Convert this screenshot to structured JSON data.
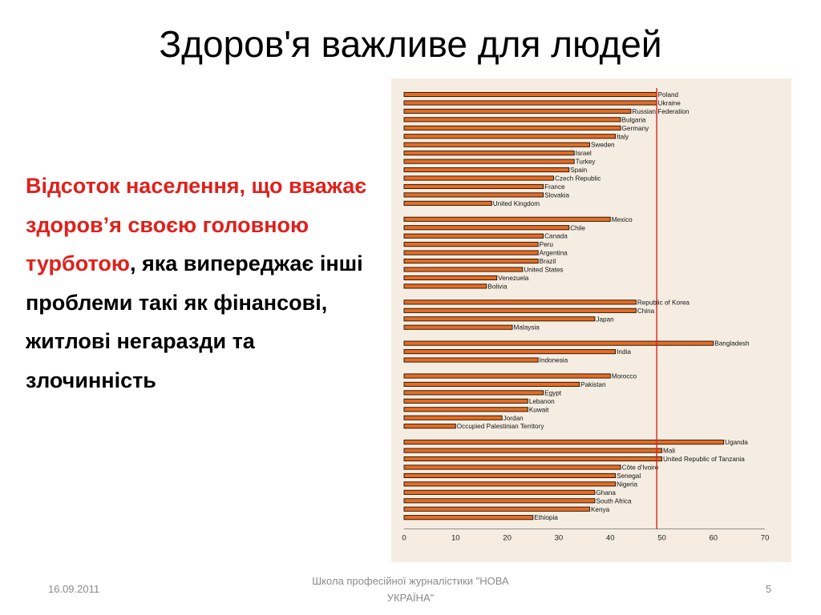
{
  "slide": {
    "title": "Здоров'я важливе для людей",
    "body": {
      "red_part": "Відсоток населення, що вважає здоров’я своєю головною турботою",
      "black_part": ", яка випереджає інші проблеми такі як фінансові, житлові негаразди та злочинність"
    },
    "footer": {
      "date": "16.09.2011",
      "school": "Школа професійної журналістики \"НОВА УКРАЇНА\"",
      "page": "5"
    }
  },
  "colors": {
    "bar_fill": "#e96b1f",
    "bar_stroke": "#111111",
    "reference_line": "#e0201b",
    "chart_background": "#f5ede1",
    "highlight_text": "#e0201b"
  },
  "chart_data": {
    "type": "bar",
    "orientation": "horizontal",
    "title": "",
    "xlabel": "",
    "ylabel": "",
    "xlim": [
      0,
      70
    ],
    "xticks": [
      0,
      10,
      20,
      30,
      40,
      50,
      60,
      70
    ],
    "reference_line": 49,
    "grid": false,
    "groups": [
      {
        "bars": [
          {
            "label": "Poland",
            "value": 49
          },
          {
            "label": "Ukraine",
            "value": 49
          },
          {
            "label": "Russian Federation",
            "value": 44
          },
          {
            "label": "Bulgaria",
            "value": 42
          },
          {
            "label": "Germany",
            "value": 42
          },
          {
            "label": "Italy",
            "value": 41
          },
          {
            "label": "Sweden",
            "value": 36
          },
          {
            "label": "Israel",
            "value": 33
          },
          {
            "label": "Turkey",
            "value": 33
          },
          {
            "label": "Spain",
            "value": 32
          },
          {
            "label": "Czech Republic",
            "value": 29
          },
          {
            "label": "France",
            "value": 27
          },
          {
            "label": "Slovakia",
            "value": 27
          },
          {
            "label": "United Kingdom",
            "value": 17
          }
        ]
      },
      {
        "bars": [
          {
            "label": "Mexico",
            "value": 40
          },
          {
            "label": "Chile",
            "value": 32
          },
          {
            "label": "Canada",
            "value": 27
          },
          {
            "label": "Peru",
            "value": 26
          },
          {
            "label": "Argentina",
            "value": 26
          },
          {
            "label": "Brazil",
            "value": 26
          },
          {
            "label": "United States",
            "value": 23
          },
          {
            "label": "Venezuela",
            "value": 18
          },
          {
            "label": "Bolivia",
            "value": 16
          }
        ]
      },
      {
        "bars": [
          {
            "label": "Republic of Korea",
            "value": 45
          },
          {
            "label": "China",
            "value": 45
          },
          {
            "label": "Japan",
            "value": 37
          },
          {
            "label": "Malaysia",
            "value": 21
          }
        ]
      },
      {
        "bars": [
          {
            "label": "Bangladesh",
            "value": 60
          },
          {
            "label": "India",
            "value": 41
          },
          {
            "label": "Indonesia",
            "value": 26
          }
        ]
      },
      {
        "bars": [
          {
            "label": "Morocco",
            "value": 40
          },
          {
            "label": "Pakistan",
            "value": 34
          },
          {
            "label": "Egypt",
            "value": 27
          },
          {
            "label": "Lebanon",
            "value": 24
          },
          {
            "label": "Kuwait",
            "value": 24
          },
          {
            "label": "Jordan",
            "value": 19
          },
          {
            "label": "Occupied Palestinian Territory",
            "value": 10
          }
        ]
      },
      {
        "bars": [
          {
            "label": "Uganda",
            "value": 62
          },
          {
            "label": "Mali",
            "value": 50
          },
          {
            "label": "United Republic of Tanzania",
            "value": 50
          },
          {
            "label": "Côte d'Ivoire",
            "value": 42
          },
          {
            "label": "Senegal",
            "value": 41
          },
          {
            "label": "Nigeria",
            "value": 41
          },
          {
            "label": "Ghana",
            "value": 37
          },
          {
            "label": "South Africa",
            "value": 37
          },
          {
            "label": "Kenya",
            "value": 36
          },
          {
            "label": "Ethiopia",
            "value": 25
          }
        ]
      }
    ]
  }
}
